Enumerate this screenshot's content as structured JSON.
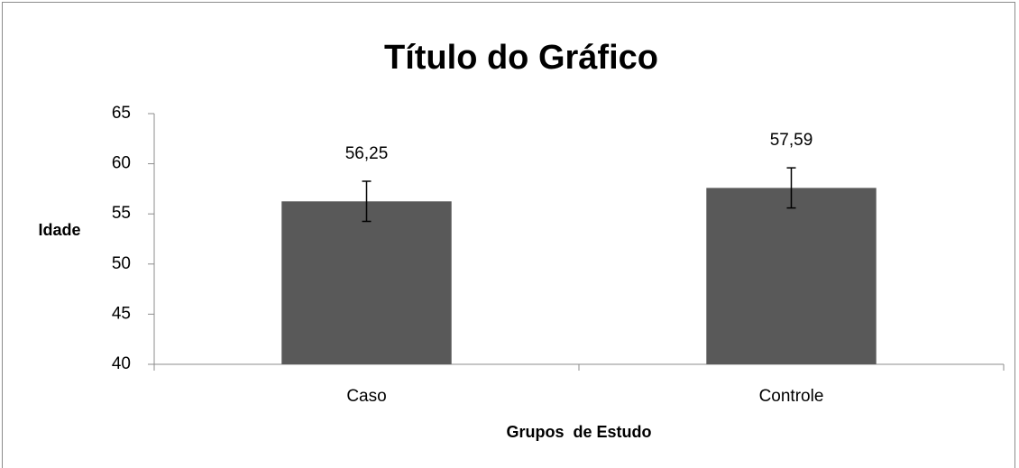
{
  "chart_data": {
    "type": "bar",
    "title": "Título do Gráfico",
    "x_label": "Grupos  de Estudo",
    "y_label": "Idade",
    "categories": [
      "Caso",
      "Controle"
    ],
    "values": [
      56.25,
      57.59
    ],
    "value_labels": [
      "56,25",
      "57,59"
    ],
    "errors": [
      2,
      2
    ],
    "color": "#595959",
    "ylim": [
      40,
      65
    ],
    "yticks": [
      40,
      45,
      50,
      55,
      60,
      65
    ],
    "grid": false
  }
}
